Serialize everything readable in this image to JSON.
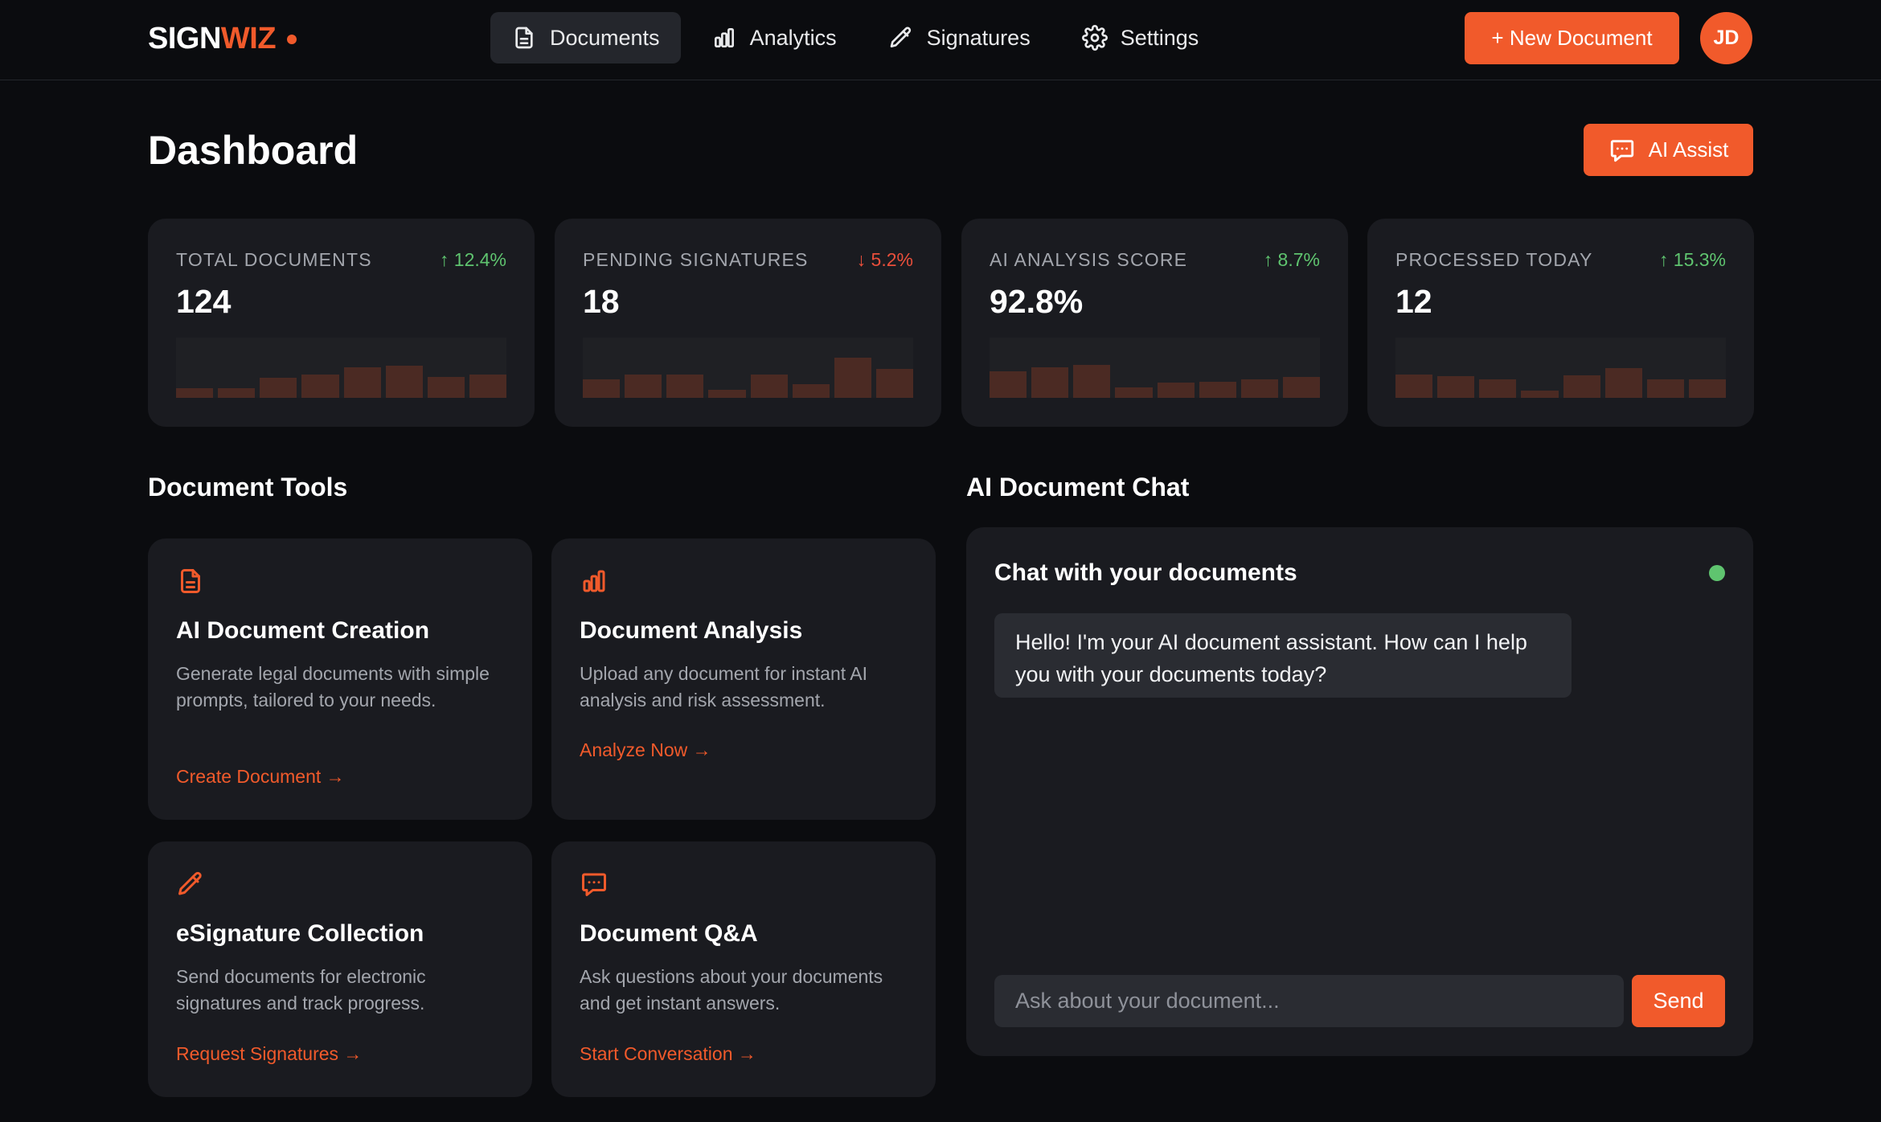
{
  "app": {
    "logo_part1": "SIGN",
    "logo_part2": "WIZ",
    "colors": {
      "accent": "#f15a2b",
      "positive": "#5fc46f",
      "negative": "#ea4f3b",
      "background": "#0b0c0f",
      "card": "#1a1b20"
    }
  },
  "nav": {
    "items": [
      {
        "label": "Documents",
        "icon": "document-icon",
        "active": true
      },
      {
        "label": "Analytics",
        "icon": "bar-chart-icon",
        "active": false
      },
      {
        "label": "Signatures",
        "icon": "pen-icon",
        "active": false
      },
      {
        "label": "Settings",
        "icon": "gear-icon",
        "active": false
      }
    ],
    "new_document_label": "+ New Document",
    "avatar_initials": "JD"
  },
  "header": {
    "title": "Dashboard",
    "ai_assist_label": "AI Assist"
  },
  "stats": [
    {
      "label": "TOTAL DOCUMENTS",
      "value": "124",
      "delta": "↑ 12.4%",
      "trend": "up",
      "bars": [
        0.16,
        0.16,
        0.33,
        0.39,
        0.51,
        0.53,
        0.35,
        0.38
      ]
    },
    {
      "label": "PENDING SIGNATURES",
      "value": "18",
      "delta": "↓ 5.2%",
      "trend": "down",
      "bars": [
        0.31,
        0.39,
        0.39,
        0.13,
        0.38,
        0.23,
        0.66,
        0.48
      ]
    },
    {
      "label": "AI ANALYSIS SCORE",
      "value": "92.8%",
      "delta": "↑ 8.7%",
      "trend": "up",
      "bars": [
        0.44,
        0.51,
        0.55,
        0.17,
        0.25,
        0.26,
        0.31,
        0.34
      ]
    },
    {
      "label": "PROCESSED TODAY",
      "value": "12",
      "delta": "↑ 15.3%",
      "trend": "up",
      "bars": [
        0.38,
        0.36,
        0.3,
        0.12,
        0.37,
        0.49,
        0.31,
        0.31
      ]
    }
  ],
  "tools": {
    "title": "Document Tools",
    "cards": [
      {
        "title": "AI Document Creation",
        "description": "Generate legal documents with simple prompts, tailored to your needs.",
        "link": "Create Document →",
        "icon": "document-icon"
      },
      {
        "title": "Document Analysis",
        "description": "Upload any document for instant AI analysis and risk assessment.",
        "link": "Analyze Now →",
        "icon": "bar-chart-icon"
      },
      {
        "title": "eSignature Collection",
        "description": "Send documents for electronic signatures and track progress.",
        "link": "Request Signatures →",
        "icon": "pen-icon"
      },
      {
        "title": "Document Q&A",
        "description": "Ask questions about your documents and get instant answers.",
        "link": "Start Conversation →",
        "icon": "chat-icon"
      }
    ]
  },
  "chat": {
    "section_title": "AI Document Chat",
    "panel_title": "Chat with your documents",
    "messages": [
      {
        "role": "assistant",
        "text": "Hello! I'm your AI document assistant. How can I help you with your documents today?"
      }
    ],
    "input_placeholder": "Ask about your document...",
    "send_label": "Send"
  }
}
